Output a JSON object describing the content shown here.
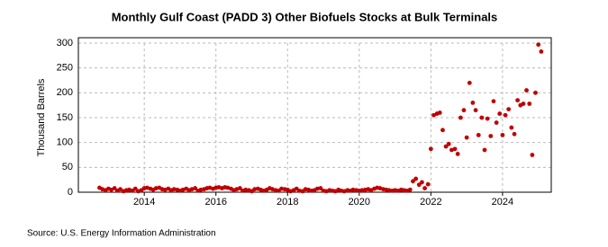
{
  "chart_data": {
    "type": "scatter",
    "title": "Monthly Gulf Coast (PADD 3) Other Biofuels Stocks at Bulk Terminals",
    "y_label": "Thousand Barrels",
    "source": "Source: U.S. Energy Information Administration",
    "color": "#c00000",
    "grid": true,
    "xlim": [
      2012.16,
      2025.36
    ],
    "xticks": [
      2014,
      2016,
      2018,
      2020,
      2022,
      2024
    ],
    "ylim": [
      0,
      300
    ],
    "yticks": [
      0,
      50,
      100,
      150,
      200,
      250,
      300
    ],
    "x": [
      2012.75,
      2012.83,
      2012.92,
      2013.0,
      2013.08,
      2013.17,
      2013.25,
      2013.33,
      2013.42,
      2013.5,
      2013.58,
      2013.67,
      2013.75,
      2013.83,
      2013.92,
      2014.0,
      2014.08,
      2014.17,
      2014.25,
      2014.33,
      2014.42,
      2014.5,
      2014.58,
      2014.67,
      2014.75,
      2014.83,
      2014.92,
      2015.0,
      2015.08,
      2015.17,
      2015.25,
      2015.33,
      2015.42,
      2015.5,
      2015.58,
      2015.67,
      2015.75,
      2015.83,
      2015.92,
      2016.0,
      2016.08,
      2016.17,
      2016.25,
      2016.33,
      2016.42,
      2016.5,
      2016.58,
      2016.67,
      2016.75,
      2016.83,
      2016.92,
      2017.0,
      2017.08,
      2017.17,
      2017.25,
      2017.33,
      2017.42,
      2017.5,
      2017.58,
      2017.67,
      2017.75,
      2017.83,
      2017.92,
      2018.0,
      2018.08,
      2018.17,
      2018.25,
      2018.33,
      2018.42,
      2018.5,
      2018.58,
      2018.67,
      2018.75,
      2018.83,
      2018.92,
      2019.0,
      2019.08,
      2019.17,
      2019.25,
      2019.33,
      2019.42,
      2019.5,
      2019.58,
      2019.67,
      2019.75,
      2019.83,
      2019.92,
      2020.0,
      2020.08,
      2020.17,
      2020.25,
      2020.33,
      2020.42,
      2020.5,
      2020.58,
      2020.67,
      2020.75,
      2020.83,
      2020.92,
      2021.0,
      2021.08,
      2021.17,
      2021.25,
      2021.33,
      2021.42,
      2021.5,
      2021.58,
      2021.67,
      2021.75,
      2021.83,
      2021.92,
      2022.0,
      2022.08,
      2022.17,
      2022.25,
      2022.33,
      2022.42,
      2022.5,
      2022.58,
      2022.67,
      2022.75,
      2022.83,
      2022.92,
      2023.0,
      2023.08,
      2023.17,
      2023.25,
      2023.33,
      2023.42,
      2023.5,
      2023.58,
      2023.67,
      2023.75,
      2023.83,
      2023.92,
      2024.0,
      2024.08,
      2024.17,
      2024.25,
      2024.33,
      2024.42,
      2024.5,
      2024.58,
      2024.67,
      2024.75,
      2024.83,
      2024.92,
      2025.0,
      2025.08
    ],
    "values": [
      9,
      6,
      4,
      7,
      5,
      8,
      3,
      6,
      2,
      4,
      5,
      3,
      7,
      2,
      4,
      8,
      9,
      7,
      5,
      8,
      9,
      6,
      5,
      7,
      4,
      6,
      5,
      3,
      5,
      7,
      4,
      6,
      8,
      3,
      5,
      6,
      8,
      9,
      7,
      9,
      10,
      8,
      10,
      9,
      7,
      4,
      6,
      8,
      3,
      5,
      4,
      2,
      6,
      7,
      5,
      3,
      5,
      8,
      6,
      4,
      3,
      7,
      6,
      5,
      2,
      4,
      7,
      3,
      2,
      6,
      5,
      3,
      4,
      7,
      8,
      3,
      2,
      4,
      3,
      2,
      5,
      3,
      2,
      4,
      3,
      5,
      4,
      3,
      4,
      5,
      6,
      4,
      7,
      9,
      8,
      6,
      5,
      4,
      3,
      4,
      3,
      5,
      4,
      3,
      5,
      22,
      27,
      15,
      20,
      8,
      16,
      87,
      155,
      158,
      160,
      125,
      92,
      97,
      85,
      87,
      77,
      150,
      165,
      110,
      220,
      180,
      165,
      115,
      150,
      85,
      148,
      113,
      183,
      140,
      158,
      115,
      155,
      167,
      130,
      117,
      185,
      175,
      178,
      205,
      178,
      75,
      200,
      297,
      283
    ]
  }
}
